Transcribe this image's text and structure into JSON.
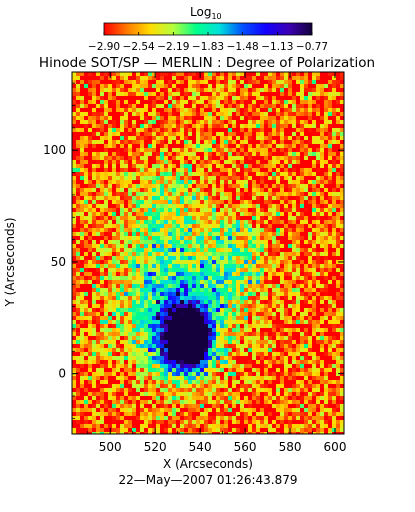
{
  "chart_data": {
    "type": "heatmap",
    "title": "Hinode SOT/SP — MERLIN : Degree of Polarization",
    "xlabel": "X (Arcseconds)",
    "ylabel": "Y (Arcseconds)",
    "xlim": [
      483,
      604
    ],
    "ylim": [
      -27,
      135
    ],
    "xticks": [
      "500",
      "520",
      "540",
      "560",
      "580",
      "600"
    ],
    "yticks": [
      "0",
      "50",
      "100"
    ],
    "grid": false,
    "colorbar": {
      "label_base": "Log",
      "label_sub": "10",
      "position": "top",
      "ticks": [
        "−2.90",
        "−2.54",
        "−2.19",
        "−1.83",
        "−1.48",
        "−1.13",
        "−0.77"
      ],
      "range": [
        -2.9,
        -0.77
      ],
      "colors": [
        "#ff0000",
        "#ff7a00",
        "#ffdc00",
        "#b4ff3c",
        "#00ff8c",
        "#00e0dc",
        "#0050ff",
        "#1400ff",
        "#3c00b4",
        "#14003c"
      ]
    },
    "features": [
      {
        "kind": "sunspot-umbra",
        "x": 535,
        "y": 15,
        "level": -0.9
      },
      {
        "kind": "penumbra-ring",
        "x": 533,
        "y": 17,
        "level": -1.45
      },
      {
        "kind": "plage-band",
        "x": 525,
        "y": 35,
        "level": -1.8
      },
      {
        "kind": "plage-patch",
        "x": 555,
        "y": 48,
        "level": -1.8
      },
      {
        "kind": "plage-patch",
        "x": 525,
        "y": 75,
        "level": -2.0
      }
    ],
    "background_level": -2.75
  },
  "footer": {
    "timestamp": "22—May—2007 01:26:43.879"
  }
}
